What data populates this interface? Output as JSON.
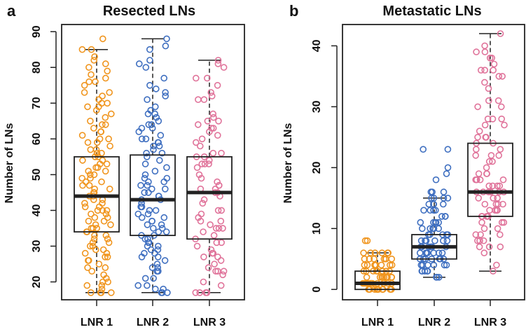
{
  "chart_data": [
    {
      "type": "box",
      "panel_label": "a",
      "title": "Resected LNs",
      "xlabel": "",
      "ylabel": "Number of LNs",
      "ylim": [
        15,
        92
      ],
      "yticks": [
        20,
        30,
        40,
        50,
        60,
        70,
        80,
        90
      ],
      "categories": [
        "LNR 1",
        "LNR 2",
        "LNR 3"
      ],
      "colors": [
        "#f0951e",
        "#3f6fc0",
        "#e0739a"
      ],
      "boxes": [
        {
          "min": 17,
          "q1": 34,
          "median": 44,
          "q3": 55,
          "max": 85,
          "outliers": [
            88
          ]
        },
        {
          "min": 17,
          "q1": 33,
          "median": 43,
          "q3": 55.5,
          "max": 88,
          "outliers": []
        },
        {
          "min": 17,
          "q1": 32,
          "median": 45,
          "q3": 55,
          "max": 82,
          "outliers": []
        }
      ],
      "points": [
        [
          17,
          17,
          17,
          17,
          18,
          19,
          19,
          20,
          20,
          21,
          22,
          23,
          24,
          24,
          25,
          26,
          26,
          27,
          27,
          28,
          28,
          29,
          29,
          30,
          30,
          31,
          31,
          32,
          32,
          33,
          33,
          34,
          34,
          35,
          35,
          35,
          36,
          36,
          37,
          37,
          38,
          38,
          39,
          39,
          40,
          40,
          40,
          41,
          41,
          42,
          42,
          43,
          43,
          44,
          44,
          45,
          45,
          46,
          46,
          47,
          47,
          48,
          48,
          49,
          49,
          50,
          50,
          51,
          51,
          52,
          52,
          53,
          53,
          54,
          54,
          55,
          55,
          56,
          56,
          57,
          57,
          58,
          59,
          59,
          60,
          60,
          61,
          62,
          62,
          63,
          64,
          64,
          65,
          66,
          67,
          68,
          69,
          69,
          70,
          70,
          71,
          72,
          73,
          73,
          75,
          76,
          76,
          77,
          78,
          79,
          80,
          81,
          82,
          83,
          85,
          85,
          88
        ],
        [
          17,
          17,
          17,
          18,
          18,
          19,
          19,
          21,
          21,
          23,
          23,
          24,
          24,
          25,
          26,
          27,
          27,
          28,
          28,
          29,
          29,
          30,
          30,
          31,
          31,
          32,
          32,
          33,
          33,
          34,
          34,
          35,
          35,
          36,
          36,
          37,
          37,
          38,
          38,
          39,
          39,
          40,
          40,
          41,
          41,
          42,
          43,
          43,
          44,
          44,
          45,
          45,
          46,
          46,
          47,
          47,
          48,
          48,
          49,
          49,
          50,
          51,
          52,
          53,
          54,
          55,
          56,
          56,
          57,
          58,
          58,
          59,
          59,
          60,
          60,
          61,
          62,
          63,
          63,
          64,
          64,
          65,
          66,
          67,
          67,
          68,
          68,
          69,
          71,
          72,
          73,
          74,
          75,
          77,
          80,
          81,
          82,
          85,
          86,
          88
        ],
        [
          17,
          17,
          17,
          17,
          19,
          20,
          22,
          23,
          23,
          23,
          24,
          25,
          26,
          27,
          27,
          28,
          28,
          29,
          30,
          31,
          31,
          32,
          33,
          34,
          35,
          35,
          35,
          36,
          37,
          37,
          38,
          39,
          40,
          40,
          42,
          43,
          44,
          45,
          45,
          46,
          46,
          47,
          47,
          48,
          49,
          50,
          52,
          53,
          53,
          53,
          54,
          55,
          55,
          56,
          56,
          58,
          59,
          60,
          61,
          62,
          63,
          63,
          64,
          65,
          65,
          66,
          67,
          71,
          71,
          72,
          73,
          75,
          77,
          77,
          80,
          81,
          82
        ]
      ]
    },
    {
      "type": "box",
      "panel_label": "b",
      "title": "Metastatic LNs",
      "xlabel": "",
      "ylabel": "Number of LNs",
      "ylim": [
        -1.7,
        43.5
      ],
      "yticks": [
        0,
        10,
        20,
        30,
        40
      ],
      "categories": [
        "LNR 1",
        "LNR 2",
        "LNR 3"
      ],
      "colors": [
        "#f0951e",
        "#3f6fc0",
        "#e0739a"
      ],
      "boxes": [
        {
          "min": 0,
          "q1": 0,
          "median": 1,
          "q3": 3,
          "max": 6,
          "outliers": [
            8,
            8
          ]
        },
        {
          "min": 2,
          "q1": 5,
          "median": 7,
          "q3": 9,
          "max": 15,
          "outliers": [
            16,
            16,
            16,
            18,
            19,
            20,
            23,
            23
          ]
        },
        {
          "min": 3,
          "q1": 12,
          "median": 16,
          "q3": 24,
          "max": 42,
          "outliers": []
        }
      ],
      "points": [
        [
          0,
          0,
          0,
          0,
          0,
          0,
          0,
          0,
          0,
          0,
          0,
          0,
          1,
          1,
          1,
          1,
          1,
          1,
          1,
          1,
          1,
          1,
          1,
          1,
          2,
          2,
          2,
          2,
          2,
          2,
          2,
          2,
          2,
          2,
          3,
          3,
          3,
          3,
          3,
          3,
          3,
          3,
          3,
          4,
          4,
          4,
          4,
          4,
          4,
          4,
          4,
          5,
          5,
          5,
          5,
          5,
          5,
          5,
          6,
          6,
          6,
          6,
          6,
          6,
          8,
          8
        ],
        [
          2,
          2,
          2,
          3,
          3,
          3,
          3,
          3,
          4,
          4,
          4,
          4,
          4,
          4,
          4,
          5,
          5,
          5,
          5,
          5,
          5,
          5,
          5,
          6,
          6,
          6,
          6,
          6,
          6,
          6,
          7,
          7,
          7,
          7,
          7,
          7,
          7,
          7,
          8,
          8,
          8,
          8,
          8,
          8,
          9,
          9,
          9,
          9,
          9,
          10,
          10,
          10,
          10,
          10,
          11,
          11,
          11,
          11,
          11,
          12,
          12,
          12,
          13,
          13,
          13,
          13,
          14,
          14,
          14,
          14,
          15,
          15,
          15,
          15,
          16,
          16,
          16,
          18,
          19,
          20,
          23,
          23
        ],
        [
          3,
          4,
          6,
          7,
          7,
          7,
          8,
          8,
          8,
          9,
          9,
          9,
          10,
          10,
          11,
          11,
          11,
          12,
          12,
          12,
          12,
          12,
          13,
          13,
          13,
          13,
          14,
          14,
          14,
          14,
          15,
          15,
          15,
          16,
          16,
          16,
          16,
          16,
          16,
          17,
          17,
          17,
          17,
          18,
          18,
          18,
          18,
          19,
          19,
          19,
          20,
          21,
          21,
          22,
          22,
          22,
          23,
          23,
          24,
          24,
          25,
          25,
          25,
          26,
          27,
          27,
          28,
          28,
          28,
          30,
          30,
          31,
          31,
          33,
          34,
          35,
          35,
          36,
          36,
          36,
          37,
          38,
          38,
          39,
          39,
          40,
          42
        ]
      ]
    }
  ]
}
